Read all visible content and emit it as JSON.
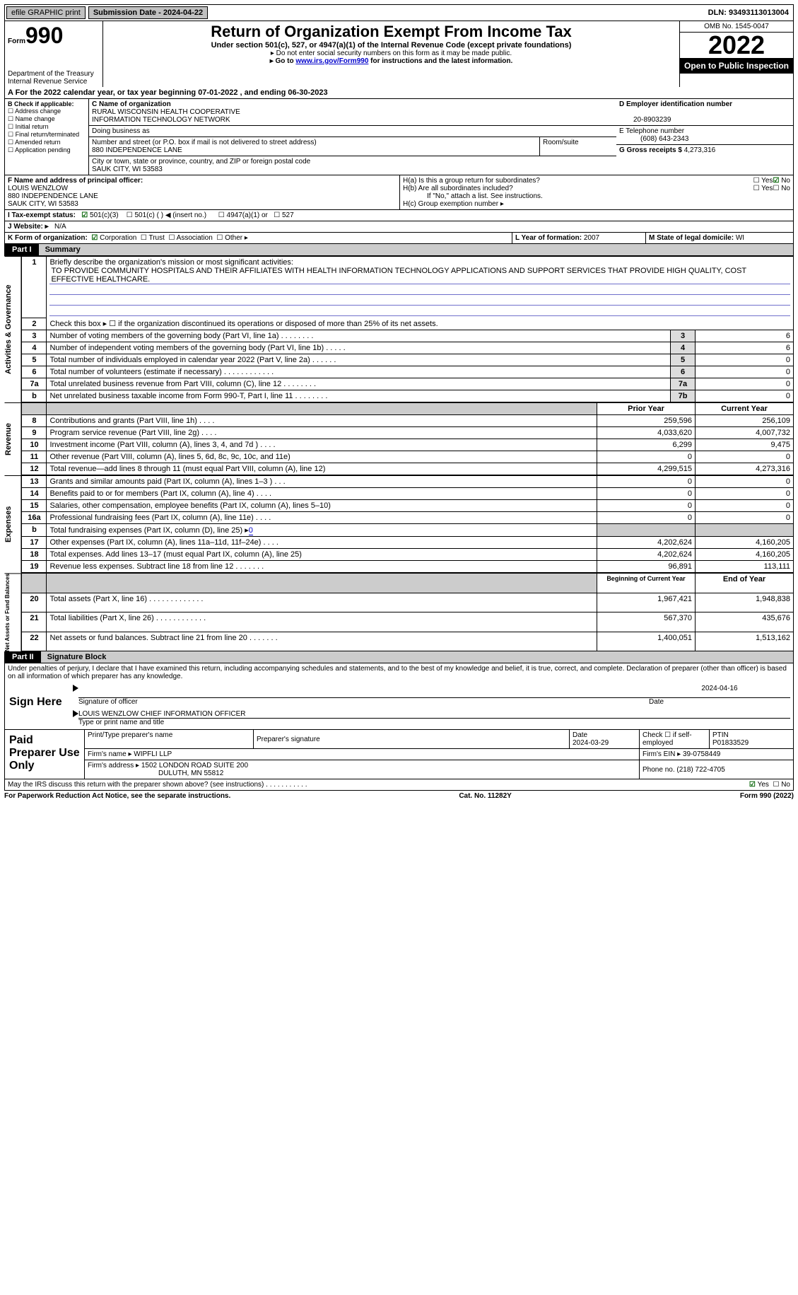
{
  "topbar": {
    "efile": "efile GRAPHIC print",
    "submission": "Submission Date - 2024-04-22",
    "dln": "DLN: 93493113013004"
  },
  "header": {
    "form": "Form",
    "num": "990",
    "dept": "Department of the Treasury",
    "irs": "Internal Revenue Service",
    "title": "Return of Organization Exempt From Income Tax",
    "sub1": "Under section 501(c), 527, or 4947(a)(1) of the Internal Revenue Code (except private foundations)",
    "sub2": "▸ Do not enter social security numbers on this form as it may be made public.",
    "sub3a": "▸ Go to ",
    "sub3link": "www.irs.gov/Form990",
    "sub3b": " for instructions and the latest information.",
    "omb": "OMB No. 1545-0047",
    "year": "2022",
    "inspect": "Open to Public Inspection"
  },
  "lineA": "A For the 2022 calendar year, or tax year beginning 07-01-2022    , and ending 06-30-2023",
  "B": {
    "hdr": "B Check if applicable:",
    "items": [
      "Address change",
      "Name change",
      "Initial return",
      "Final return/terminated",
      "Amended return",
      "Application pending"
    ]
  },
  "C": {
    "namelbl": "C Name of organization",
    "name1": "RURAL WISCONSIN HEALTH COOPERATIVE",
    "name2": "INFORMATION TECHNOLOGY NETWORK",
    "dba": "Doing business as",
    "addrlbl": "Number and street (or P.O. box if mail is not delivered to street address)",
    "room": "Room/suite",
    "street": "880 INDEPENDENCE LANE",
    "citylbl": "City or town, state or province, country, and ZIP or foreign postal code",
    "city": "SAUK CITY, WI  53583"
  },
  "D": {
    "lbl": "D Employer identification number",
    "val": "20-8903239"
  },
  "E": {
    "lbl": "E Telephone number",
    "val": "(608) 643-2343"
  },
  "G": {
    "lbl": "G Gross receipts $",
    "val": "4,273,316"
  },
  "F": {
    "lbl": "F  Name and address of principal officer:",
    "name": "LOUIS WENZLOW",
    "street": "880 INDEPENDENCE LANE",
    "city": "SAUK CITY, WI  53583"
  },
  "H": {
    "ha": "H(a)  Is this a group return for subordinates?",
    "hb": "H(b)  Are all subordinates included?",
    "hbnote": "If \"No,\" attach a list. See instructions.",
    "hc": "H(c)  Group exemption number ▸",
    "yes": "Yes",
    "no": "No"
  },
  "I": {
    "lbl": "I   Tax-exempt status:",
    "c3": "501(c)(3)",
    "c": "501(c) (  ) ◀ (insert no.)",
    "a1": "4947(a)(1) or",
    "s527": "527"
  },
  "J": {
    "lbl": "J   Website: ▸",
    "val": "N/A"
  },
  "K": {
    "lbl": "K Form of organization:",
    "corp": "Corporation",
    "trust": "Trust",
    "assoc": "Association",
    "other": "Other ▸"
  },
  "L": {
    "lbl": "L Year of formation:",
    "val": "2007"
  },
  "M": {
    "lbl": "M State of legal domicile:",
    "val": "WI"
  },
  "part1": {
    "hdr": "Part I",
    "title": "Summary"
  },
  "summary": {
    "l1lbl": "Briefly describe the organization's mission or most significant activities:",
    "l1": "TO PROVIDE COMMUNITY HOSPITALS AND THEIR AFFILIATES WITH HEALTH INFORMATION TECHNOLOGY APPLICATIONS AND SUPPORT SERVICES THAT PROVIDE HIGH QUALITY, COST EFFECTIVE HEALTHCARE.",
    "l2": "Check this box ▸ ☐  if the organization discontinued its operations or disposed of more than 25% of its net assets.",
    "lines": [
      {
        "n": "3",
        "d": "Number of voting members of the governing body (Part VI, line 1a)   .    .    .    .    .    .    .    .",
        "b": "3",
        "v": "6"
      },
      {
        "n": "4",
        "d": "Number of independent voting members of the governing body (Part VI, line 1b)   .    .    .    .    .",
        "b": "4",
        "v": "6"
      },
      {
        "n": "5",
        "d": "Total number of individuals employed in calendar year 2022 (Part V, line 2a)   .    .    .    .    .    .",
        "b": "5",
        "v": "0"
      },
      {
        "n": "6",
        "d": "Total number of volunteers (estimate if necessary)    .    .    .    .    .    .    .    .    .    .    .    .",
        "b": "6",
        "v": "0"
      },
      {
        "n": "7a",
        "d": "Total unrelated business revenue from Part VIII, column (C), line 12   .    .    .    .    .    .    .    .",
        "b": "7a",
        "v": "0"
      },
      {
        "n": "b",
        "d": "Net unrelated business taxable income from Form 990-T, Part I, line 11  .    .    .    .    .    .    .    .",
        "b": "7b",
        "v": "0"
      }
    ],
    "prior": "Prior Year",
    "current": "Current Year",
    "rev": [
      {
        "n": "8",
        "d": "Contributions and grants (Part VIII, line 1h)    .    .    .    .",
        "p": "259,596",
        "c": "256,109"
      },
      {
        "n": "9",
        "d": "Program service revenue (Part VIII, line 2g)    .    .    .    .",
        "p": "4,033,620",
        "c": "4,007,732"
      },
      {
        "n": "10",
        "d": "Investment income (Part VIII, column (A), lines 3, 4, and 7d )    .    .    .    .",
        "p": "6,299",
        "c": "9,475"
      },
      {
        "n": "11",
        "d": "Other revenue (Part VIII, column (A), lines 5, 6d, 8c, 9c, 10c, and 11e)",
        "p": "0",
        "c": "0"
      },
      {
        "n": "12",
        "d": "Total revenue—add lines 8 through 11 (must equal Part VIII, column (A), line 12)",
        "p": "4,299,515",
        "c": "4,273,316"
      }
    ],
    "exp": [
      {
        "n": "13",
        "d": "Grants and similar amounts paid (Part IX, column (A), lines 1–3 )   .    .    .",
        "p": "0",
        "c": "0"
      },
      {
        "n": "14",
        "d": "Benefits paid to or for members (Part IX, column (A), line 4)   .    .    .    .",
        "p": "0",
        "c": "0"
      },
      {
        "n": "15",
        "d": "Salaries, other compensation, employee benefits (Part IX, column (A), lines 5–10)",
        "p": "0",
        "c": "0"
      },
      {
        "n": "16a",
        "d": "Professional fundraising fees (Part IX, column (A), line 11e)    .    .    .    .",
        "p": "0",
        "c": "0"
      },
      {
        "n": "b",
        "d": "Total fundraising expenses (Part IX, column (D), line 25) ▸",
        "p": "",
        "c": "",
        "grey": true,
        "link": "0"
      },
      {
        "n": "17",
        "d": "Other expenses (Part IX, column (A), lines 11a–11d, 11f–24e)   .    .    .    .",
        "p": "4,202,624",
        "c": "4,160,205"
      },
      {
        "n": "18",
        "d": "Total expenses. Add lines 13–17 (must equal Part IX, column (A), line 25)",
        "p": "4,202,624",
        "c": "4,160,205"
      },
      {
        "n": "19",
        "d": "Revenue less expenses. Subtract line 18 from line 12  .    .    .    .    .    .    .",
        "p": "96,891",
        "c": "113,111"
      }
    ],
    "begin": "Beginning of Current Year",
    "end": "End of Year",
    "net": [
      {
        "n": "20",
        "d": "Total assets (Part X, line 16)  .    .    .    .    .    .    .    .    .    .    .    .    .",
        "p": "1,967,421",
        "c": "1,948,838"
      },
      {
        "n": "21",
        "d": "Total liabilities (Part X, line 26)  .    .    .    .    .    .    .    .    .    .    .    .",
        "p": "567,370",
        "c": "435,676"
      },
      {
        "n": "22",
        "d": "Net assets or fund balances. Subtract line 21 from line 20  .    .    .    .    .    .    .",
        "p": "1,400,051",
        "c": "1,513,162"
      }
    ],
    "side1": "Activities & Governance",
    "side2": "Revenue",
    "side3": "Expenses",
    "side4": "Net Assets or Fund Balances"
  },
  "part2": {
    "hdr": "Part II",
    "title": "Signature Block"
  },
  "sig": {
    "decl": "Under penalties of perjury, I declare that I have examined this return, including accompanying schedules and statements, and to the best of my knowledge and belief, it is true, correct, and complete. Declaration of preparer (other than officer) is based on all information of which preparer has any knowledge.",
    "sign": "Sign Here",
    "sigline": "Signature of officer",
    "date": "Date",
    "dateval": "2024-04-16",
    "name": "LOUIS WENZLOW  CHIEF INFORMATION OFFICER",
    "namelbl": "Type or print name and title"
  },
  "prep": {
    "title": "Paid Preparer Use Only",
    "p1": "Print/Type preparer's name",
    "p2": "Preparer's signature",
    "p3": "Date",
    "p3v": "2024-03-29",
    "p4": "Check ☐ if self-employed",
    "p5": "PTIN",
    "p5v": "P01833529",
    "firm": "Firm's name     ▸",
    "firmv": "WIPFLI LLP",
    "ein": "Firm's EIN ▸",
    "einv": "39-0758449",
    "addr": "Firm's address ▸",
    "addrv1": "1502 LONDON ROAD SUITE 200",
    "addrv2": "DULUTH, MN  55812",
    "phone": "Phone no.",
    "phonev": "(218) 722-4705"
  },
  "discuss": "May the IRS discuss this return with the preparer shown above? (see instructions)   .    .    .    .    .    .    .    .    .    .    .",
  "footer": {
    "l": "For Paperwork Reduction Act Notice, see the separate instructions.",
    "c": "Cat. No. 11282Y",
    "r": "Form 990 (2022)"
  }
}
